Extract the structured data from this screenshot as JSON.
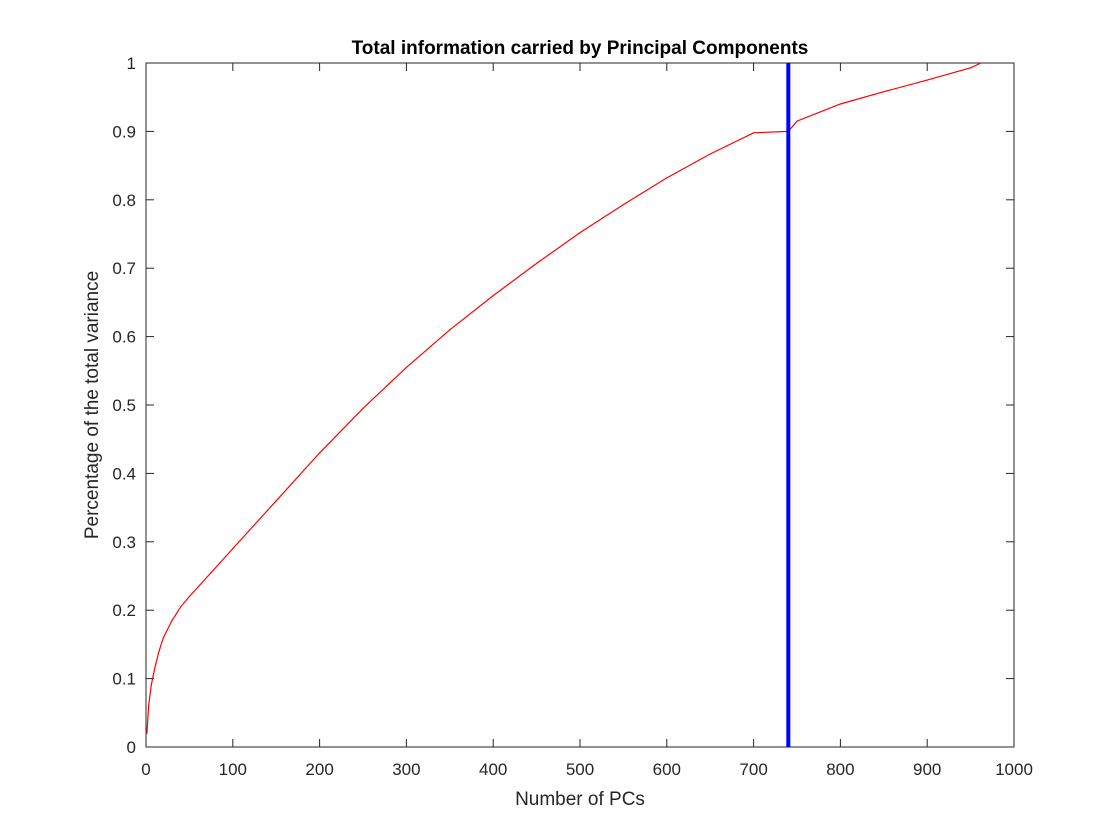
{
  "chart_data": {
    "type": "line",
    "title": "Total information carried by Principal Components",
    "xlabel": "Number of PCs",
    "ylabel": "Percentage of the total variance",
    "xlim": [
      0,
      1000
    ],
    "ylim": [
      0,
      1
    ],
    "xticks": [
      0,
      100,
      200,
      300,
      400,
      500,
      600,
      700,
      800,
      900,
      1000
    ],
    "yticks": [
      0,
      0.1,
      0.2,
      0.3,
      0.4,
      0.5,
      0.6,
      0.7,
      0.8,
      0.9,
      1
    ],
    "grid": false,
    "series": [
      {
        "color": "#ff0000",
        "x": [
          1,
          3,
          6,
          10,
          15,
          20,
          30,
          40,
          50,
          75,
          100,
          150,
          200,
          250,
          300,
          350,
          400,
          450,
          500,
          550,
          600,
          650,
          700,
          740,
          750,
          800,
          850,
          900,
          950,
          962
        ],
        "y": [
          0.02,
          0.06,
          0.09,
          0.115,
          0.14,
          0.16,
          0.185,
          0.205,
          0.22,
          0.255,
          0.29,
          0.36,
          0.43,
          0.495,
          0.555,
          0.61,
          0.66,
          0.707,
          0.752,
          0.793,
          0.832,
          0.867,
          0.898,
          0.9,
          0.915,
          0.94,
          0.958,
          0.975,
          0.993,
          1.0
        ]
      }
    ],
    "vlines": [
      {
        "x": 740,
        "color": "#0000ff"
      }
    ]
  }
}
